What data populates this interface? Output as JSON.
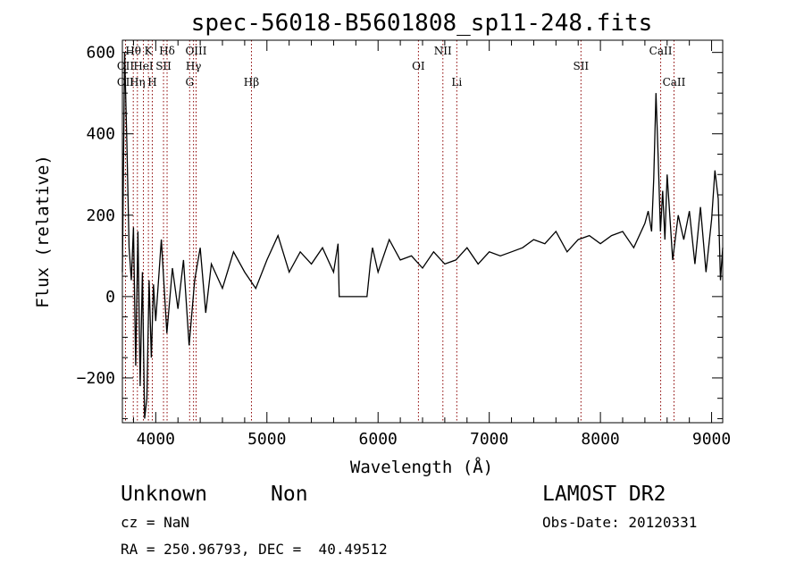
{
  "chart_data": {
    "type": "line",
    "title": "spec-56018-B5601808_sp11-248.fits",
    "xlabel": "Wavelength (Å)",
    "ylabel": "Flux (relative)",
    "xlim": [
      3700,
      9100
    ],
    "ylim": [
      -310,
      630
    ],
    "x_ticks": [
      4000,
      5000,
      6000,
      7000,
      8000,
      9000
    ],
    "y_ticks": [
      -200,
      0,
      200,
      400,
      600
    ],
    "grid": false,
    "series": [
      {
        "x": [
          3700,
          3720,
          3740,
          3760,
          3780,
          3800,
          3820,
          3840,
          3860,
          3880,
          3900,
          3920,
          3940,
          3960,
          3980,
          4000,
          4050,
          4100,
          4150,
          4200,
          4250,
          4300,
          4350,
          4400,
          4450,
          4500,
          4600,
          4700,
          4800,
          4900,
          5000,
          5100,
          5200,
          5300,
          5400,
          5500,
          5600,
          5640,
          5650,
          5900,
          5930,
          5950,
          6000,
          6100,
          6200,
          6300,
          6400,
          6500,
          6600,
          6700,
          6800,
          6900,
          7000,
          7100,
          7200,
          7300,
          7400,
          7500,
          7600,
          7700,
          7800,
          7900,
          8000,
          8100,
          8200,
          8300,
          8400,
          8430,
          8460,
          8480,
          8500,
          8520,
          8540,
          8560,
          8580,
          8600,
          8650,
          8700,
          8750,
          8800,
          8850,
          8900,
          8950,
          9000,
          9030,
          9060,
          9080,
          9100
        ],
        "y": [
          60,
          600,
          380,
          120,
          40,
          170,
          -170,
          160,
          -220,
          60,
          -300,
          -250,
          40,
          -150,
          30,
          -60,
          140,
          -90,
          70,
          -30,
          90,
          -120,
          40,
          120,
          -40,
          80,
          20,
          110,
          60,
          20,
          90,
          150,
          60,
          110,
          80,
          120,
          60,
          130,
          0,
          0,
          80,
          120,
          60,
          140,
          90,
          100,
          70,
          110,
          80,
          90,
          120,
          80,
          110,
          100,
          110,
          120,
          140,
          130,
          160,
          110,
          140,
          150,
          130,
          150,
          160,
          120,
          180,
          210,
          160,
          290,
          500,
          340,
          160,
          260,
          140,
          300,
          90,
          200,
          140,
          210,
          80,
          220,
          60,
          190,
          310,
          240,
          40,
          120
        ]
      }
    ],
    "lines": [
      {
        "label": "OII",
        "x": 3728,
        "row": 2
      },
      {
        "label": "OII",
        "x": 3728,
        "row": 3
      },
      {
        "label": "Hθ",
        "x": 3798,
        "row": 1
      },
      {
        "label": "Hη",
        "x": 3835,
        "row": 3
      },
      {
        "label": "HeI",
        "x": 3889,
        "row": 2
      },
      {
        "label": "K",
        "x": 3934,
        "row": 1
      },
      {
        "label": "SII",
        "x": 4070,
        "row": 2
      },
      {
        "label": "H",
        "x": 3969,
        "row": 3
      },
      {
        "label": "Hδ",
        "x": 4102,
        "row": 1
      },
      {
        "label": "OIII",
        "x": 4363,
        "row": 1
      },
      {
        "label": "Hγ",
        "x": 4340,
        "row": 2
      },
      {
        "label": "G",
        "x": 4305,
        "row": 3
      },
      {
        "label": "Hβ",
        "x": 4861,
        "row": 3
      },
      {
        "label": "OI",
        "x": 6363,
        "row": 2
      },
      {
        "label": "NII",
        "x": 6583,
        "row": 1
      },
      {
        "label": "Li",
        "x": 6708,
        "row": 3
      },
      {
        "label": "SII",
        "x": 7825,
        "row": 2
      },
      {
        "label": "CaII",
        "x": 8542,
        "row": 1
      },
      {
        "label": "CaII",
        "x": 8662,
        "row": 3
      }
    ]
  },
  "footer": {
    "object_class": "Unknown",
    "subclass": "Non",
    "survey": "LAMOST DR2",
    "cz": "cz = NaN",
    "obs_date": "Obs-Date: 20120331",
    "coords": "RA = 250.96793, DEC =  40.49512"
  }
}
